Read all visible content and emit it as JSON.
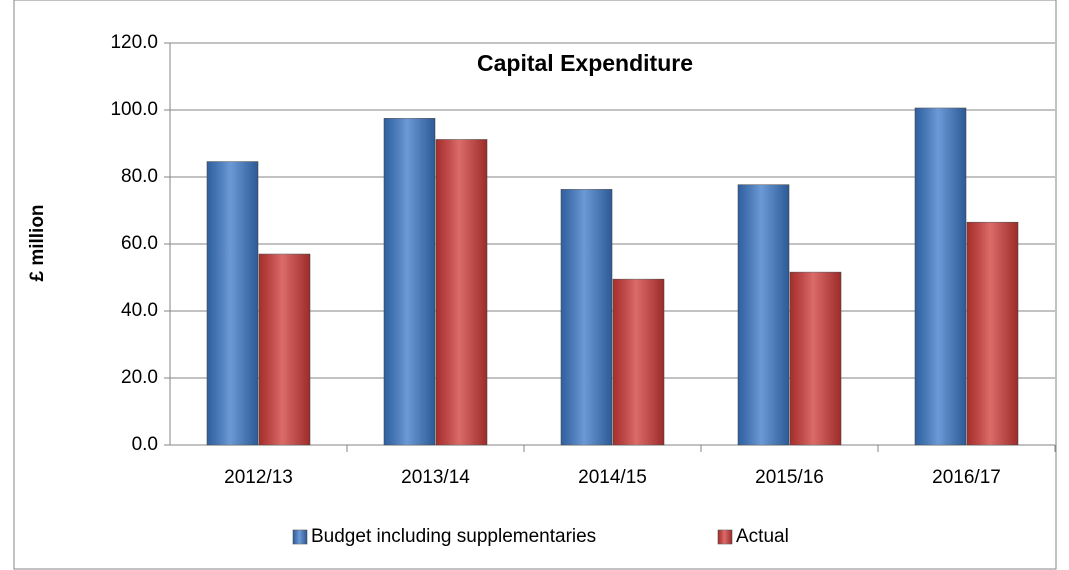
{
  "chart_data": {
    "type": "bar",
    "title": "Capital Expenditure",
    "y_label": "£ million",
    "categories": [
      "2012/13",
      "2013/14",
      "2014/15",
      "2015/16",
      "2016/17"
    ],
    "series": [
      {
        "name": "Budget including supplementaries",
        "color": "#3b78c8",
        "values": [
          84.6,
          97.5,
          76.3,
          77.7,
          100.6
        ]
      },
      {
        "name": "Actual",
        "color": "#d03a37",
        "values": [
          57.0,
          91.2,
          49.5,
          51.6,
          66.5
        ]
      }
    ],
    "ylim": [
      0,
      120
    ],
    "yticks": [
      {
        "value": 0,
        "label": "0.0"
      },
      {
        "value": 20,
        "label": "20.0"
      },
      {
        "value": 40,
        "label": "40.0"
      },
      {
        "value": 60,
        "label": "60.0"
      },
      {
        "value": 80,
        "label": "80.0"
      },
      {
        "value": 100,
        "label": "100.0"
      },
      {
        "value": 120,
        "label": "120.0"
      }
    ],
    "grid": true,
    "legend": "bottom"
  }
}
